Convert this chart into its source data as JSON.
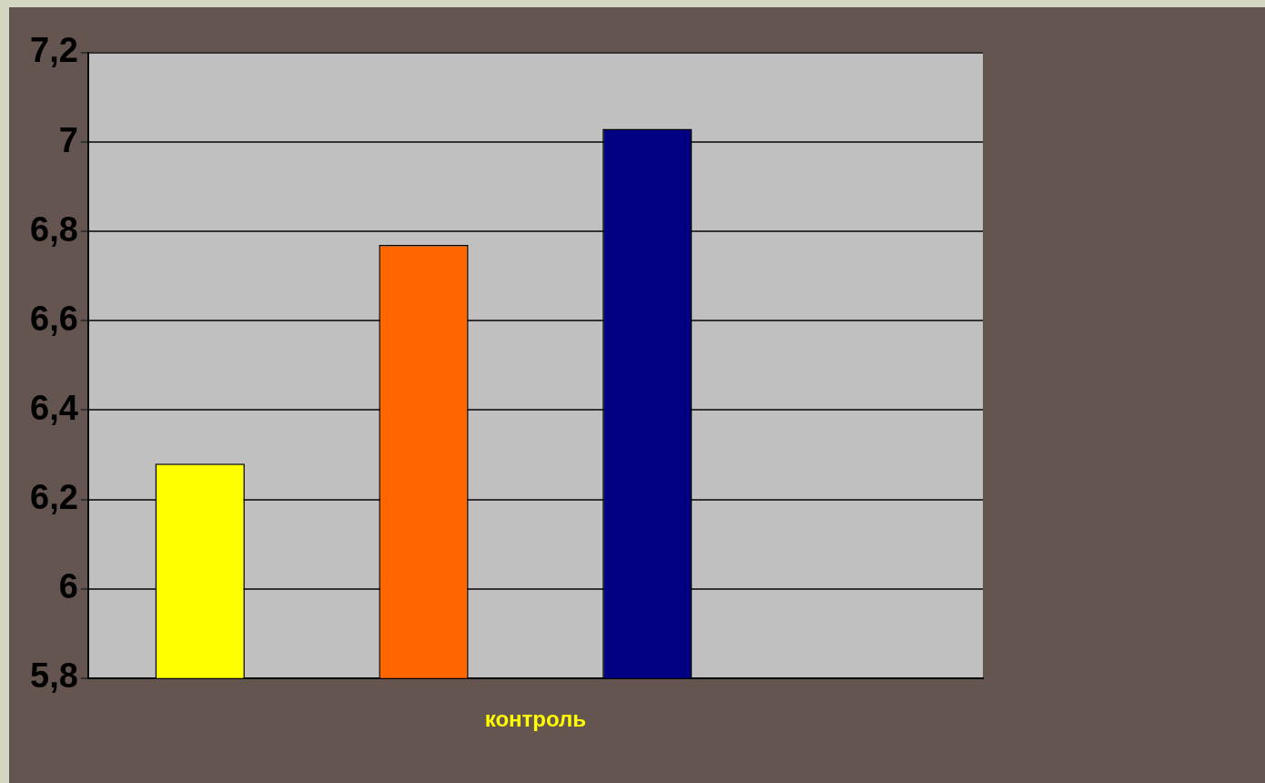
{
  "chart_data": {
    "type": "bar",
    "xlabel": "контроль",
    "categories": [
      null,
      null,
      null,
      null
    ],
    "series": [
      {
        "colors": [
          "#ffff00",
          "#ff6600",
          "#000080",
          "#000080"
        ],
        "values": [
          6.28,
          6.77,
          7.03,
          null
        ]
      }
    ],
    "ylim": [
      5.8,
      7.2
    ],
    "yticks": [
      {
        "value": 5.8,
        "label": "5,8"
      },
      6,
      {
        "value": 6.2,
        "label": "6,2"
      },
      {
        "value": 6.4,
        "label": "6,4"
      },
      {
        "value": 6.6,
        "label": "6,6"
      },
      {
        "value": 6.8,
        "label": "6,8"
      },
      7,
      {
        "value": 7.2,
        "label": "7,2"
      }
    ],
    "grid": "y",
    "legend": false
  }
}
